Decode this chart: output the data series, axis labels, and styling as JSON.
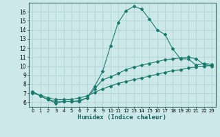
{
  "title": "",
  "xlabel": "Humidex (Indice chaleur)",
  "background_color": "#cce8e8",
  "grid_color": "#aacfcf",
  "line_color": "#1a7a6e",
  "xlim": [
    -0.5,
    23.5
  ],
  "ylim": [
    5.5,
    17.0
  ],
  "yticks": [
    6,
    7,
    8,
    9,
    10,
    11,
    12,
    13,
    14,
    15,
    16
  ],
  "xticks": [
    0,
    1,
    2,
    3,
    4,
    5,
    6,
    7,
    8,
    9,
    10,
    11,
    12,
    13,
    14,
    15,
    16,
    17,
    18,
    19,
    20,
    21,
    22,
    23
  ],
  "xtick_labels": [
    "0",
    "1",
    "2",
    "3",
    "4",
    "5",
    "6",
    "7",
    "8",
    "9",
    "10",
    "11",
    "12",
    "13",
    "14",
    "15",
    "16",
    "17",
    "18",
    "19",
    "20",
    "21",
    "22",
    "23"
  ],
  "line1_x": [
    0,
    1,
    2,
    3,
    4,
    5,
    6,
    7,
    8,
    9,
    10,
    11,
    12,
    13,
    14,
    15,
    16,
    17,
    18,
    19,
    20,
    21,
    22,
    23
  ],
  "line1_y": [
    7.2,
    6.7,
    6.3,
    5.9,
    6.1,
    6.1,
    6.1,
    6.5,
    7.8,
    9.4,
    12.2,
    14.8,
    16.1,
    16.6,
    16.3,
    15.2,
    14.0,
    13.5,
    11.9,
    10.8,
    10.8,
    10.1,
    10.3,
    10.2
  ],
  "line2_x": [
    0,
    1,
    2,
    3,
    4,
    5,
    6,
    7,
    8,
    9,
    10,
    11,
    12,
    13,
    14,
    15,
    16,
    17,
    18,
    19,
    20,
    21,
    22,
    23
  ],
  "line2_y": [
    7.2,
    6.7,
    6.3,
    6.1,
    6.1,
    6.1,
    6.2,
    6.5,
    7.5,
    8.5,
    8.8,
    9.2,
    9.6,
    9.9,
    10.1,
    10.3,
    10.5,
    10.7,
    10.8,
    10.9,
    11.0,
    10.8,
    10.2,
    10.0
  ],
  "line3_x": [
    0,
    1,
    2,
    3,
    4,
    5,
    6,
    7,
    8,
    9,
    10,
    11,
    12,
    13,
    14,
    15,
    16,
    17,
    18,
    19,
    20,
    21,
    22,
    23
  ],
  "line3_y": [
    7.0,
    6.8,
    6.5,
    6.3,
    6.3,
    6.3,
    6.5,
    6.7,
    7.1,
    7.5,
    7.8,
    8.1,
    8.3,
    8.5,
    8.7,
    8.9,
    9.1,
    9.3,
    9.5,
    9.6,
    9.8,
    9.9,
    10.0,
    10.1
  ]
}
